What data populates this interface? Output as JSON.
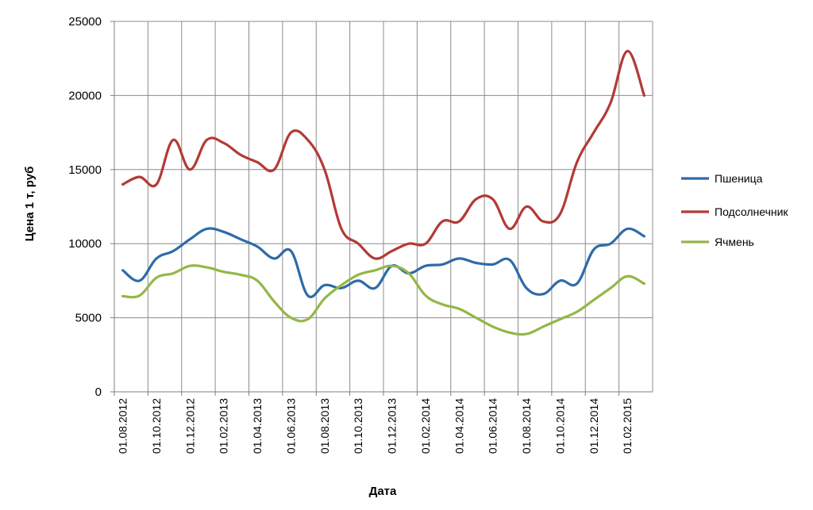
{
  "chart_data": {
    "type": "line",
    "title": "",
    "xlabel": "Дата",
    "ylabel": "Цена 1 т, руб",
    "ylim": [
      0,
      25000
    ],
    "yticks": [
      0,
      5000,
      10000,
      15000,
      20000,
      25000
    ],
    "grid": true,
    "legend_position": "right",
    "x": [
      "01.08.2012",
      "01.09.2012",
      "01.10.2012",
      "01.11.2012",
      "01.12.2012",
      "01.01.2013",
      "01.02.2013",
      "01.03.2013",
      "01.04.2013",
      "01.05.2013",
      "01.06.2013",
      "01.07.2013",
      "01.08.2013",
      "01.09.2013",
      "01.10.2013",
      "01.11.2013",
      "01.12.2013",
      "01.01.2014",
      "01.02.2014",
      "01.03.2014",
      "01.04.2014",
      "01.05.2014",
      "01.06.2014",
      "01.07.2014",
      "01.08.2014",
      "01.09.2014",
      "01.10.2014",
      "01.11.2014",
      "01.12.2014",
      "01.01.2015",
      "01.02.2015",
      "01.03.2015"
    ],
    "xtick_labels": [
      "01.08.2012",
      "01.10.2012",
      "01.12.2012",
      "01.02.2013",
      "01.04.2013",
      "01.06.2013",
      "01.08.2013",
      "01.10.2013",
      "01.12.2013",
      "01.02.2014",
      "01.04.2014",
      "01.06.2014",
      "01.08.2014",
      "01.10.2014",
      "01.12.2014",
      "01.02.2015"
    ],
    "series": [
      {
        "name": "Пшеница",
        "color": "#2e6ba8",
        "values": [
          8200,
          7500,
          9000,
          9500,
          10300,
          11000,
          10800,
          10300,
          9800,
          9000,
          9500,
          6500,
          7200,
          7000,
          7500,
          7000,
          8500,
          8000,
          8500,
          8600,
          9000,
          8700,
          8600,
          8900,
          7000,
          6600,
          7500,
          7300,
          9600,
          10000,
          11000,
          10500
        ]
      },
      {
        "name": "Подсолнечник",
        "color": "#b33a36",
        "values": [
          14000,
          14500,
          14000,
          17000,
          15000,
          17000,
          16800,
          16000,
          15500,
          15000,
          17500,
          17000,
          15000,
          11000,
          10000,
          9000,
          9500,
          10000,
          10000,
          11500,
          11500,
          13000,
          13000,
          11000,
          12500,
          11500,
          12000,
          15500,
          17500,
          19500,
          23000,
          20000
        ]
      },
      {
        "name": "Ячмень",
        "color": "#93b747",
        "values": [
          6450,
          6500,
          7700,
          8000,
          8500,
          8400,
          8100,
          7900,
          7500,
          6100,
          5000,
          4900,
          6300,
          7200,
          7900,
          8200,
          8500,
          8000,
          6500,
          5900,
          5600,
          5000,
          4400,
          4000,
          3900,
          4400,
          4900,
          5400,
          6200,
          7000,
          7800,
          7300
        ]
      }
    ]
  }
}
